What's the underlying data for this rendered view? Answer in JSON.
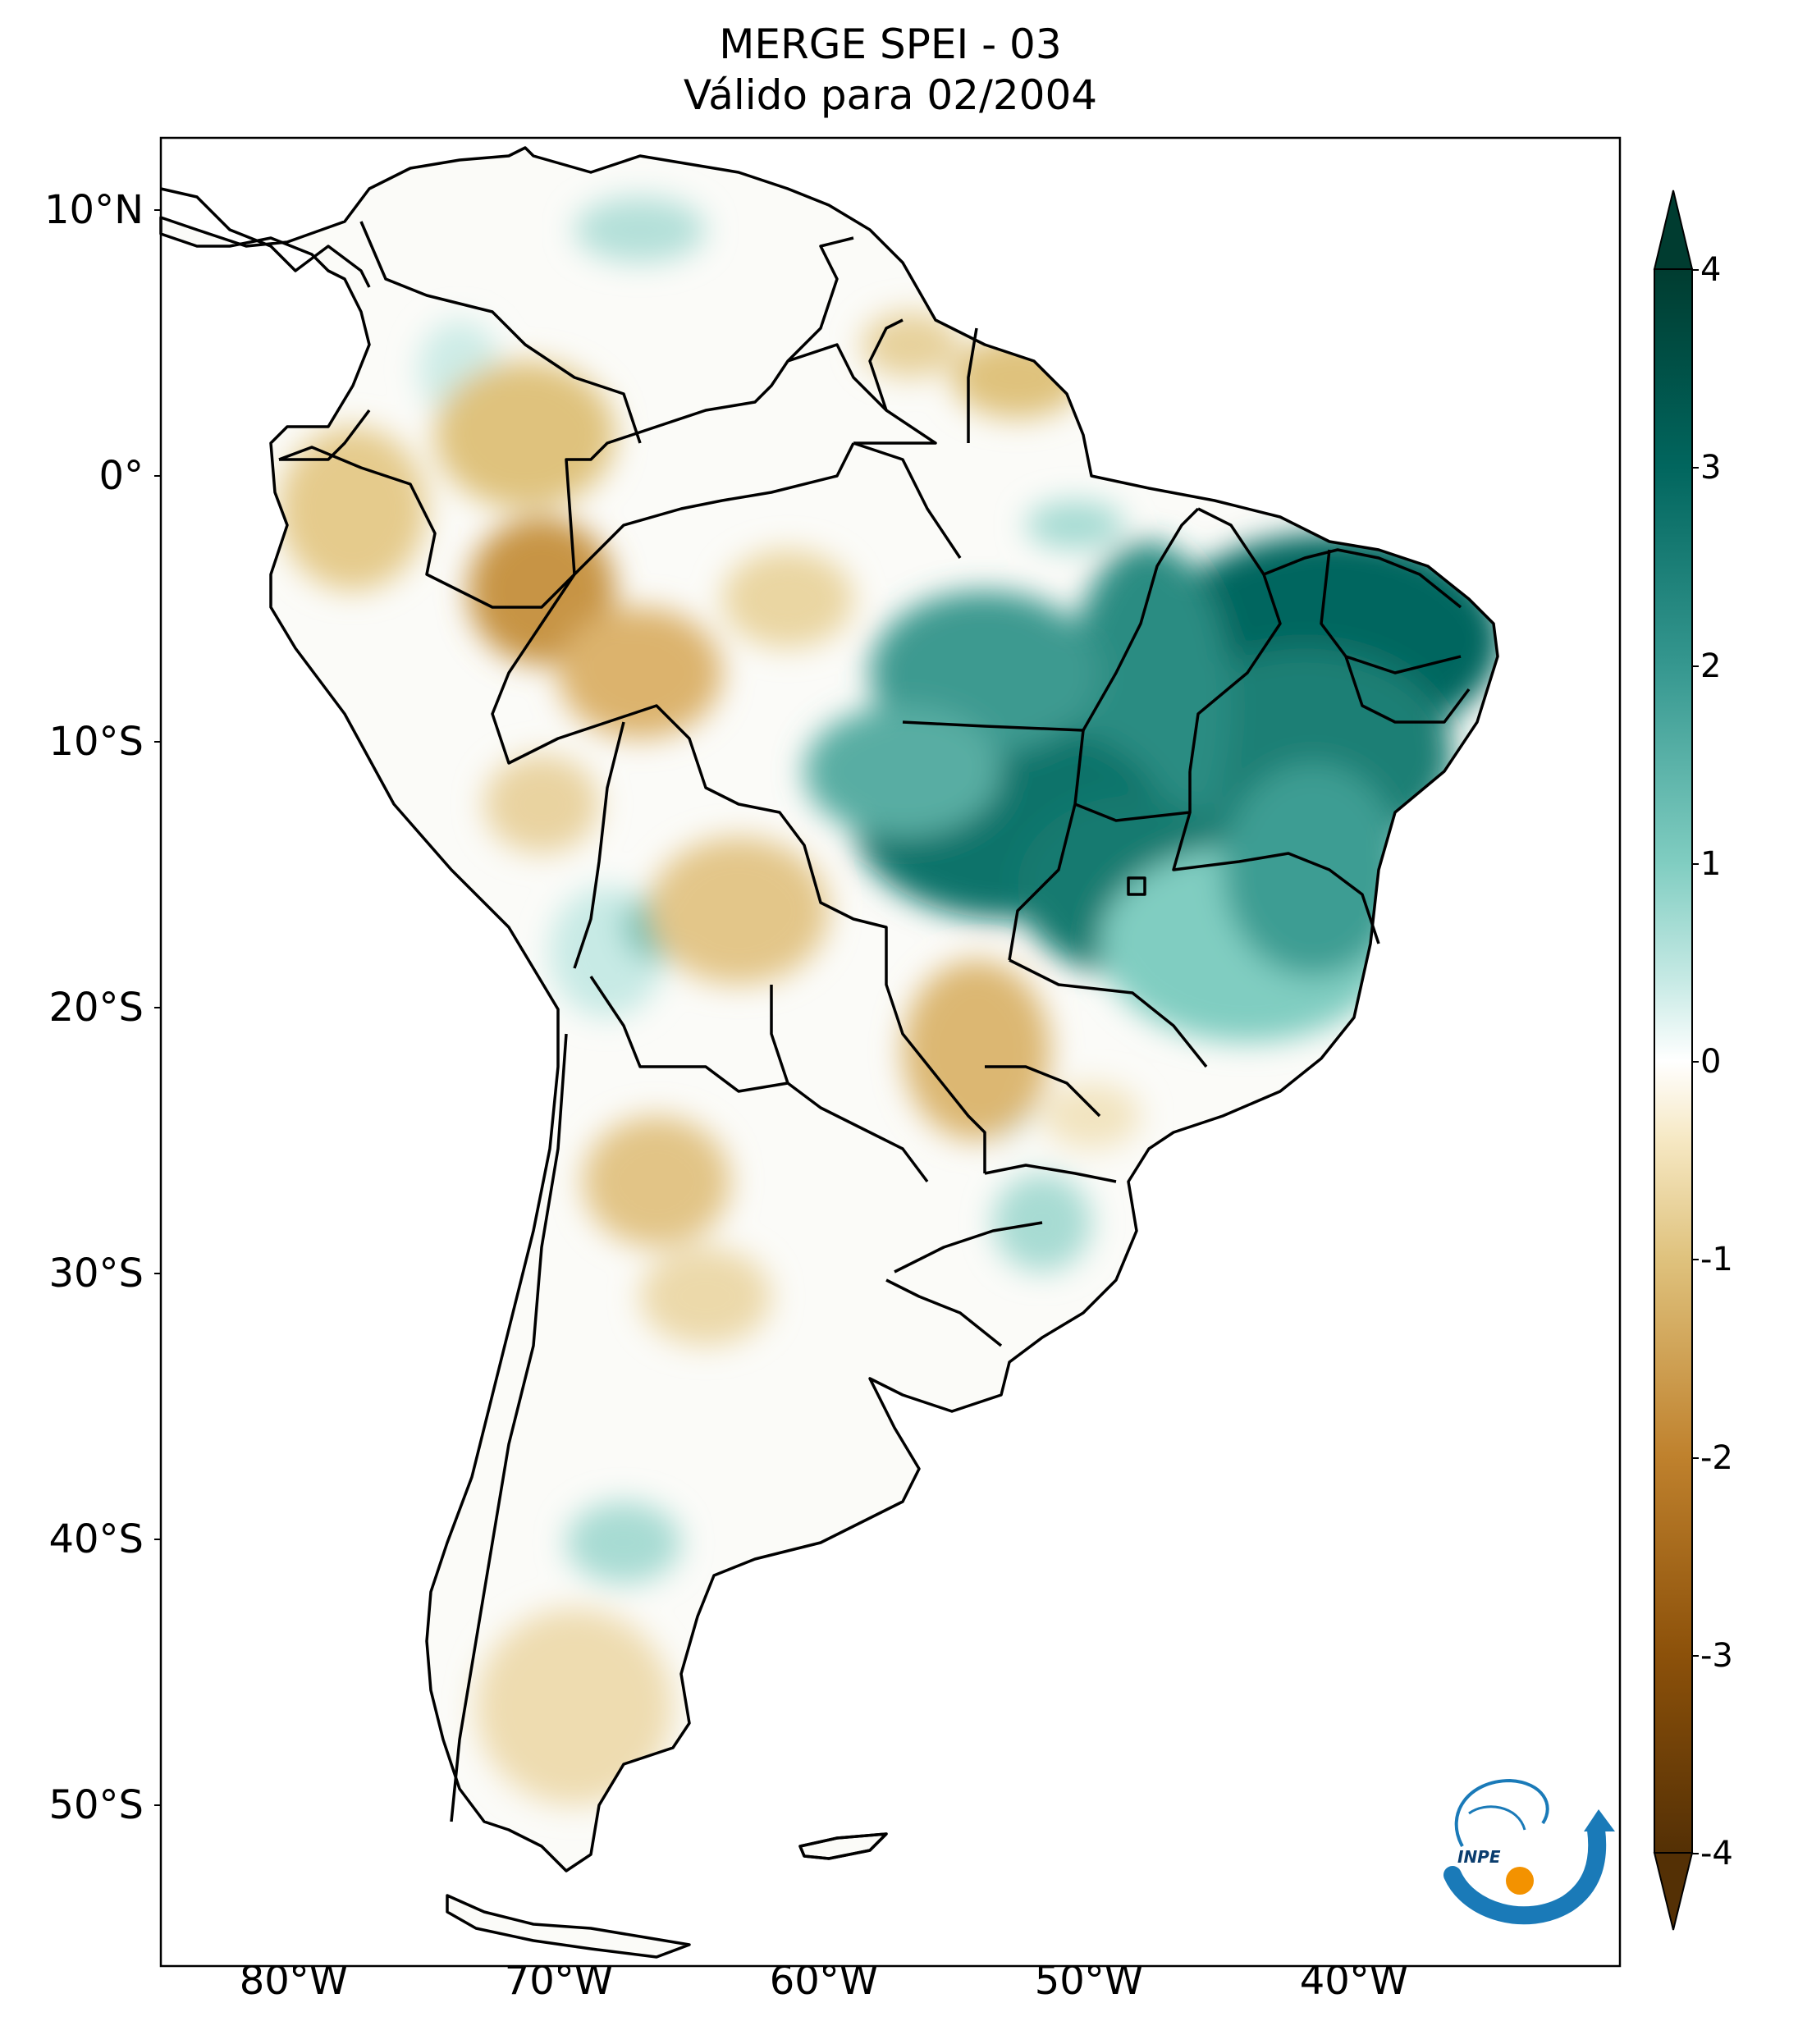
{
  "title": {
    "line1": "MERGE   SPEI - 03",
    "line2": "Válido para 02/2004"
  },
  "map": {
    "projection": "plate-carree",
    "lon_range": [
      -85,
      -30
    ],
    "lat_range": [
      -56,
      13
    ],
    "lat_ticks": [
      "10°N",
      "0°",
      "10°S",
      "20°S",
      "30°S",
      "40°S",
      "50°S"
    ],
    "lon_ticks": [
      "80°W",
      "70°W",
      "60°W",
      "50°W",
      "40°W"
    ],
    "field": "SPEI-3",
    "regions_wet": [
      "Northeast Brazil",
      "Central Brazil",
      "Central-west Brazil"
    ],
    "regions_dry": [
      "Western Amazon",
      "Guianas",
      "Southern Bolivia/Paraguay",
      "Patagonia"
    ]
  },
  "colorbar": {
    "colormap": "BrBG",
    "range": [
      -4,
      4
    ],
    "ticks": [
      "4",
      "3",
      "2",
      "1",
      "0",
      "-1",
      "-2",
      "-3",
      "-4"
    ],
    "extend": "both",
    "colors": {
      "neg4": "#543005",
      "neg3": "#8c510a",
      "neg2": "#bf812d",
      "neg1": "#dfc27d",
      "neg05": "#f6e8c3",
      "zero": "#ffffff",
      "pos05": "#c7eae5",
      "pos1": "#80cdc1",
      "pos2": "#35978f",
      "pos3": "#01665e",
      "pos4": "#003c30"
    }
  },
  "logo": {
    "text": "INPE",
    "icon": "inpe-logo-icon"
  }
}
